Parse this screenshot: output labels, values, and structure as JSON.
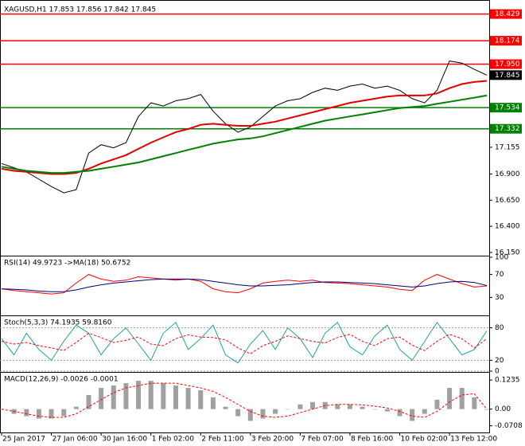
{
  "chart_data": [
    {
      "type": "line",
      "title": "XAGUSD,H1  17.853 17.856 17.842 17.845",
      "ylim": [
        16.127,
        18.525
      ],
      "yticks": [
        {
          "value": 16.15,
          "label": "16.150"
        },
        {
          "value": 16.4,
          "label": "16.400"
        },
        {
          "value": 16.65,
          "label": "16.650"
        },
        {
          "value": 16.9,
          "label": "16.900"
        },
        {
          "value": 17.155,
          "label": "17.155"
        }
      ],
      "levels": [
        {
          "value": 18.429,
          "label": "18.429",
          "color": "#ff0000"
        },
        {
          "value": 18.174,
          "label": "18.174",
          "color": "#ff0000"
        },
        {
          "value": 17.95,
          "label": "17.950",
          "color": "#ff0000"
        },
        {
          "value": 17.534,
          "label": "17.534",
          "color": "#008000"
        },
        {
          "value": 17.332,
          "label": "17.332",
          "color": "#008000"
        }
      ],
      "price_tag": 17.845,
      "series": [
        {
          "color": "#000000",
          "values": [
            17.0,
            16.96,
            16.92,
            16.85,
            16.78,
            16.72,
            16.75,
            17.1,
            17.18,
            17.15,
            17.2,
            17.45,
            17.58,
            17.55,
            17.6,
            17.62,
            17.66,
            17.5,
            17.38,
            17.3,
            17.35,
            17.45,
            17.55,
            17.6,
            17.62,
            17.68,
            17.72,
            17.7,
            17.74,
            17.76,
            17.72,
            17.74,
            17.7,
            17.62,
            17.58,
            17.7,
            17.98,
            17.96,
            17.9,
            17.845
          ]
        },
        {
          "color": "#e00000",
          "values": [
            16.95,
            16.93,
            16.92,
            16.91,
            16.9,
            16.9,
            16.91,
            16.95,
            17.0,
            17.04,
            17.08,
            17.14,
            17.2,
            17.25,
            17.3,
            17.33,
            17.37,
            17.38,
            17.37,
            17.36,
            17.36,
            17.38,
            17.4,
            17.43,
            17.46,
            17.49,
            17.52,
            17.55,
            17.58,
            17.6,
            17.62,
            17.64,
            17.65,
            17.65,
            17.65,
            17.67,
            17.72,
            17.76,
            17.78,
            17.79
          ]
        },
        {
          "color": "#008000",
          "values": [
            16.97,
            16.95,
            16.93,
            16.92,
            16.91,
            16.91,
            16.92,
            16.93,
            16.95,
            16.97,
            16.99,
            17.01,
            17.04,
            17.07,
            17.1,
            17.13,
            17.16,
            17.19,
            17.21,
            17.23,
            17.24,
            17.26,
            17.29,
            17.32,
            17.35,
            17.38,
            17.41,
            17.43,
            17.45,
            17.47,
            17.49,
            17.51,
            17.53,
            17.54,
            17.55,
            17.57,
            17.59,
            17.61,
            17.63,
            17.65
          ]
        }
      ]
    },
    {
      "type": "line",
      "title": "RSI(14) 49.9723 ->MA(18) 50.6752",
      "ylim": [
        0,
        100
      ],
      "yticks": [
        30,
        70,
        100
      ],
      "series": [
        {
          "color": "#ff0000",
          "values": [
            45,
            42,
            40,
            38,
            36,
            38,
            55,
            70,
            62,
            58,
            60,
            66,
            64,
            62,
            60,
            62,
            58,
            45,
            40,
            38,
            45,
            55,
            58,
            60,
            58,
            60,
            56,
            55,
            54,
            52,
            50,
            48,
            44,
            42,
            60,
            70,
            62,
            54,
            48,
            49.9723
          ]
        },
        {
          "color": "#000080",
          "values": [
            45,
            44,
            43,
            41,
            40,
            40,
            43,
            48,
            52,
            55,
            57,
            59,
            61,
            62,
            62,
            62,
            61,
            58,
            55,
            52,
            50,
            50,
            51,
            52,
            54,
            56,
            57,
            57,
            56,
            55,
            54,
            52,
            50,
            48,
            50,
            54,
            57,
            58,
            56,
            50.6752
          ]
        }
      ]
    },
    {
      "type": "line",
      "title": "Stoch(5,3,3) 74.1935 59.8160",
      "ylim": [
        0,
        100
      ],
      "yticks": [
        0,
        20,
        80
      ],
      "series": [
        {
          "color": "#20a0a0",
          "values": [
            60,
            30,
            70,
            40,
            20,
            55,
            85,
            70,
            30,
            60,
            80,
            50,
            20,
            70,
            90,
            40,
            60,
            85,
            30,
            15,
            50,
            75,
            40,
            80,
            60,
            25,
            70,
            90,
            45,
            30,
            65,
            85,
            40,
            20,
            55,
            90,
            60,
            30,
            40,
            74.1935
          ]
        },
        {
          "color": "#ff0000",
          "dash": true,
          "values": [
            55,
            50,
            53,
            47,
            43,
            38,
            53,
            70,
            62,
            53,
            57,
            63,
            50,
            47,
            60,
            67,
            63,
            62,
            58,
            43,
            32,
            47,
            55,
            65,
            60,
            55,
            52,
            62,
            68,
            55,
            47,
            60,
            63,
            48,
            38,
            55,
            68,
            60,
            43,
            59.816
          ]
        }
      ]
    },
    {
      "type": "bar",
      "title": "MACD(12,26,9) -0.0026 -0.0001",
      "ylim": [
        -0.089,
        0.151
      ],
      "yticks": [
        -0.0708,
        {
          "value": 0,
          "label": "0.00"
        },
        0.1235
      ],
      "categories": [
        "25 Jan 2017",
        null,
        null,
        null,
        "27 Jan 06:00",
        null,
        null,
        null,
        "30 Jan 16:00",
        null,
        null,
        null,
        "1 Feb 02:00",
        null,
        null,
        null,
        "2 Feb 11:00",
        null,
        null,
        null,
        "3 Feb 20:00",
        null,
        null,
        null,
        "7 Feb 07:00",
        null,
        null,
        null,
        "8 Feb 16:00",
        null,
        null,
        null,
        "10 Feb 02:00",
        null,
        null,
        null,
        "13 Feb 12:00",
        null,
        null,
        null
      ],
      "series": [
        {
          "type": "bar",
          "color": "#a0a0a0",
          "values": [
            0,
            -0.02,
            -0.03,
            -0.04,
            -0.04,
            -0.03,
            0.01,
            0.06,
            0.09,
            0.1,
            0.11,
            0.12,
            0.12,
            0.11,
            0.1,
            0.09,
            0.08,
            0.05,
            0.01,
            -0.03,
            -0.05,
            -0.04,
            -0.02,
            0,
            0.02,
            0.03,
            0.03,
            0.02,
            0.02,
            0.01,
            0,
            -0.01,
            -0.03,
            -0.05,
            -0.02,
            0.04,
            0.09,
            0.09,
            0.05,
            -0.0026
          ]
        },
        {
          "type": "line",
          "color": "#ff0000",
          "dash": true,
          "values": [
            0,
            -0.01,
            -0.02,
            -0.03,
            -0.035,
            -0.035,
            -0.02,
            0.01,
            0.04,
            0.07,
            0.09,
            0.1,
            0.11,
            0.11,
            0.11,
            0.1,
            0.09,
            0.075,
            0.05,
            0.02,
            -0.01,
            -0.03,
            -0.035,
            -0.03,
            -0.015,
            0,
            0.015,
            0.02,
            0.02,
            0.018,
            0.012,
            0.005,
            -0.01,
            -0.03,
            -0.035,
            -0.01,
            0.03,
            0.06,
            0.065,
            -0.0001
          ]
        }
      ]
    }
  ]
}
